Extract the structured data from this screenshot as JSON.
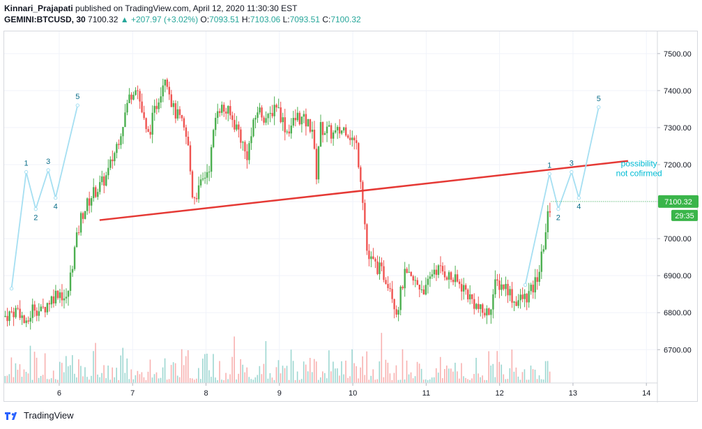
{
  "header": {
    "author": "Kinnari_Prajapati",
    "published_text": "published on TradingView.com, April 12, 2020 11:30:30 EST",
    "symbol": "GEMINI:BTCUSD, 30",
    "last": "7100.32",
    "change": "+207.97 (+3.02%)",
    "o_label": "O:",
    "o_val": "7093.51",
    "h_label": "H:",
    "h_val": "7103.06",
    "l_label": "L:",
    "l_val": "7093.51",
    "c_label": "C:",
    "c_val": "7100.32"
  },
  "footer": {
    "brand": "TradingView"
  },
  "colors": {
    "up": "#26a69a",
    "up_bright": "#4caf50",
    "down": "#ef5350",
    "trendline": "#e53935",
    "wave": "#a5dff2",
    "wave_label": "#0b6e8a",
    "note": "#00bcd4",
    "price_badge": "#3ab54a",
    "timer_badge": "#3ab54a"
  },
  "chart_data": {
    "type": "candlestick",
    "symbol": "GEMINI:BTCUSD",
    "interval": "30",
    "y_ticks": [
      "7500.00",
      "7400.00",
      "7300.00",
      "7200.00",
      "7100.00",
      "7000.00",
      "6900.00",
      "6800.00",
      "6700.00"
    ],
    "x_ticks": [
      "6",
      "7",
      "8",
      "9",
      "10",
      "11",
      "12",
      "13",
      "14"
    ],
    "ylim": [
      6610,
      7560
    ],
    "xlim": [
      5.25,
      14.15
    ],
    "last_price_label": "7100.32",
    "countdown_label": "29:35",
    "price_path": [
      [
        5.25,
        6790
      ],
      [
        5.45,
        6810
      ],
      [
        5.55,
        6760
      ],
      [
        5.65,
        6820
      ],
      [
        5.75,
        6800
      ],
      [
        5.85,
        6830
      ],
      [
        6.0,
        6860
      ],
      [
        6.1,
        6830
      ],
      [
        6.2,
        6960
      ],
      [
        6.3,
        7060
      ],
      [
        6.45,
        7120
      ],
      [
        6.55,
        7140
      ],
      [
        6.65,
        7170
      ],
      [
        6.75,
        7230
      ],
      [
        6.85,
        7300
      ],
      [
        6.95,
        7380
      ],
      [
        7.05,
        7420
      ],
      [
        7.2,
        7270
      ],
      [
        7.35,
        7380
      ],
      [
        7.45,
        7450
      ],
      [
        7.55,
        7350
      ],
      [
        7.65,
        7320
      ],
      [
        7.75,
        7260
      ],
      [
        7.82,
        7110
      ],
      [
        7.9,
        7130
      ],
      [
        8.05,
        7200
      ],
      [
        8.15,
        7360
      ],
      [
        8.3,
        7340
      ],
      [
        8.45,
        7290
      ],
      [
        8.55,
        7220
      ],
      [
        8.7,
        7350
      ],
      [
        8.85,
        7320
      ],
      [
        8.95,
        7370
      ],
      [
        9.1,
        7290
      ],
      [
        9.25,
        7330
      ],
      [
        9.45,
        7300
      ],
      [
        9.5,
        7160
      ],
      [
        9.55,
        7300
      ],
      [
        9.75,
        7280
      ],
      [
        9.9,
        7300
      ],
      [
        10.05,
        7250
      ],
      [
        10.12,
        7150
      ],
      [
        10.2,
        6950
      ],
      [
        10.35,
        6920
      ],
      [
        10.5,
        6880
      ],
      [
        10.6,
        6800
      ],
      [
        10.7,
        6900
      ],
      [
        10.85,
        6880
      ],
      [
        11.0,
        6860
      ],
      [
        11.1,
        6920
      ],
      [
        11.25,
        6910
      ],
      [
        11.35,
        6890
      ],
      [
        11.5,
        6870
      ],
      [
        11.6,
        6840
      ],
      [
        11.75,
        6800
      ],
      [
        11.85,
        6800
      ],
      [
        11.95,
        6880
      ],
      [
        12.1,
        6870
      ],
      [
        12.2,
        6830
      ],
      [
        12.35,
        6840
      ],
      [
        12.45,
        6860
      ],
      [
        12.55,
        6920
      ],
      [
        12.65,
        7050
      ],
      [
        12.7,
        7100
      ]
    ],
    "volume_bars": 260,
    "trendline": {
      "from": [
        6.55,
        7050
      ],
      "to": [
        13.75,
        7210
      ]
    },
    "wave_left": {
      "points": [
        [
          5.35,
          6865
        ],
        [
          5.55,
          7180
        ],
        [
          5.68,
          7080
        ],
        [
          5.85,
          7185
        ],
        [
          5.95,
          7110
        ],
        [
          6.25,
          7360
        ]
      ],
      "labels": [
        "1",
        "2",
        "3",
        "4",
        "5"
      ]
    },
    "wave_right": {
      "points": [
        [
          12.35,
          6875
        ],
        [
          12.68,
          7175
        ],
        [
          12.8,
          7080
        ],
        [
          12.98,
          7180
        ],
        [
          13.08,
          7110
        ],
        [
          13.35,
          7355
        ]
      ],
      "labels": [
        "1",
        "2",
        "3",
        "4",
        "5"
      ]
    },
    "annotation": [
      "possibility",
      "not cofirmed"
    ]
  }
}
